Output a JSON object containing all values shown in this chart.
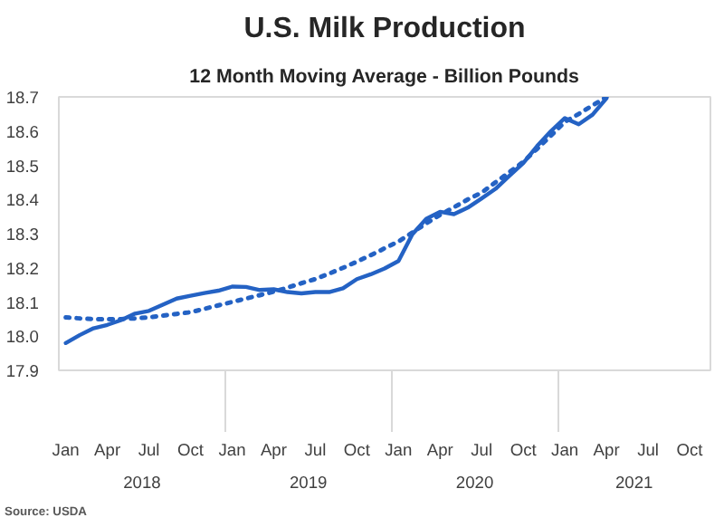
{
  "chart_data": {
    "type": "line",
    "title": "U.S. Milk Production",
    "subtitle": "12 Month Moving Average - Billion Pounds",
    "categories": [
      "Jan",
      null,
      null,
      "Apr",
      null,
      null,
      "Jul",
      null,
      null,
      "Oct",
      null,
      null,
      "Jan",
      null,
      null,
      "Apr",
      null,
      null,
      "Jul",
      null,
      null,
      "Oct",
      null,
      null,
      "Jan",
      null,
      null,
      "Apr",
      null,
      null,
      "Jul",
      null,
      null,
      "Oct",
      null,
      null,
      "Jan",
      null,
      null,
      "Apr",
      null,
      null,
      "Jul",
      null,
      null,
      "Oct",
      null
    ],
    "annotations": [
      "2018",
      "2019",
      "2020",
      "2021",
      "Source: USDA"
    ],
    "series": [
      {
        "color": "#2462c4",
        "line_style": "solid",
        "values": [
          17.98,
          18.003,
          18.023,
          18.033,
          18.047,
          18.066,
          18.074,
          18.092,
          18.11,
          18.118,
          18.126,
          18.133,
          18.145,
          18.144,
          18.135,
          18.137,
          18.129,
          18.125,
          18.129,
          18.129,
          18.14,
          18.167,
          18.181,
          18.198,
          18.22,
          18.298,
          18.343,
          18.364,
          18.357,
          18.376,
          18.403,
          18.431,
          18.469,
          18.506,
          18.556,
          18.6,
          18.638,
          18.62,
          18.648,
          18.696,
          null,
          null,
          null,
          null,
          null,
          null,
          null
        ]
      },
      {
        "color": "#2462c4",
        "line_style": "dotted",
        "values": [
          18.055,
          18.052,
          18.05,
          18.05,
          18.05,
          18.052,
          18.055,
          18.06,
          18.065,
          18.07,
          18.08,
          18.09,
          18.1,
          18.11,
          18.12,
          18.13,
          18.142,
          18.155,
          18.167,
          18.183,
          18.2,
          18.218,
          18.237,
          18.257,
          18.277,
          18.303,
          18.33,
          18.355,
          18.377,
          18.4,
          18.42,
          18.45,
          18.48,
          18.51,
          18.548,
          18.587,
          18.627,
          18.65,
          18.675,
          18.7,
          null,
          null,
          null,
          null,
          null,
          null,
          null
        ]
      }
    ],
    "ylim": [
      17.9,
      18.7
    ],
    "yticks": [
      17.9,
      {
        "value": 18,
        "label": "18.0"
      },
      18.1,
      18.2,
      18.3,
      18.4,
      18.5,
      18.6,
      18.7
    ],
    "marker": "none"
  }
}
